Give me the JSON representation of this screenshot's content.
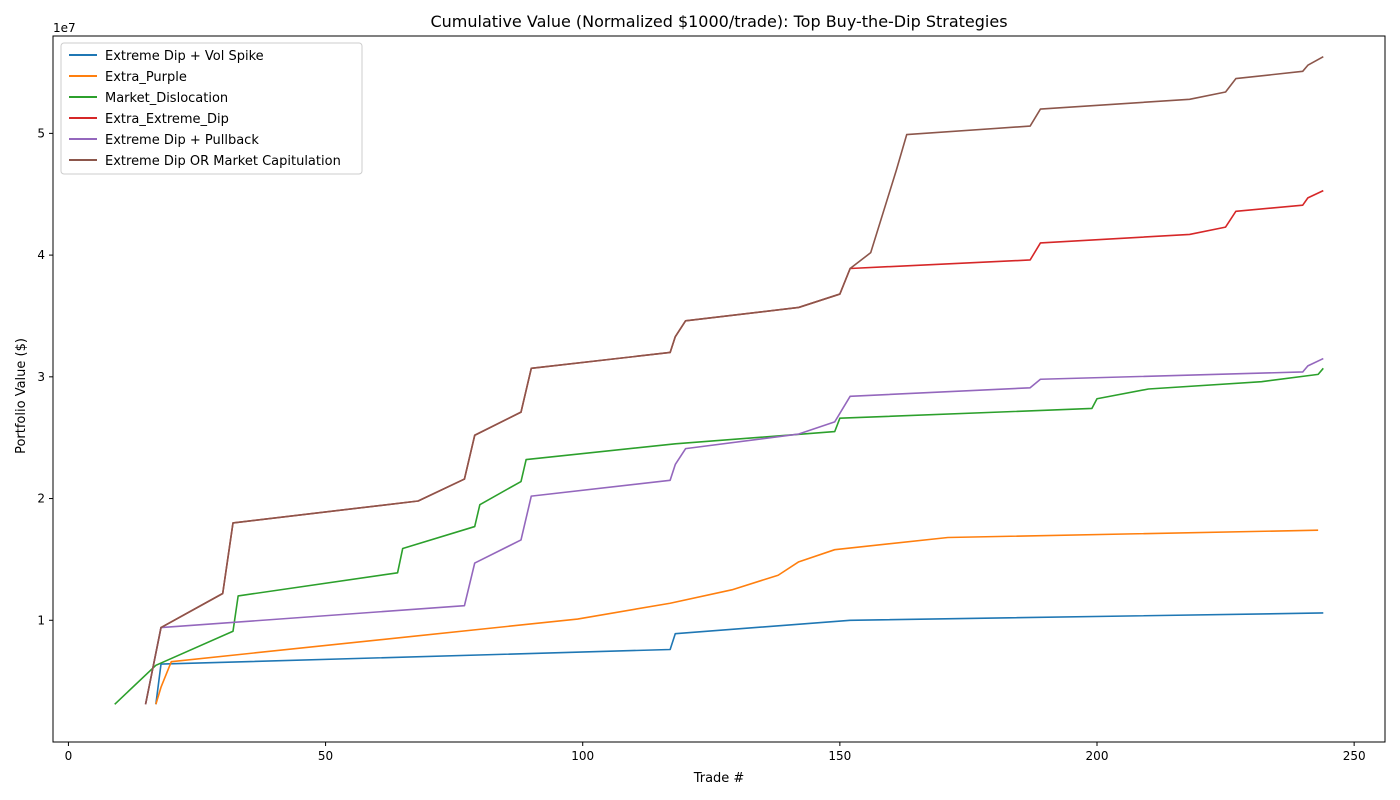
{
  "chart_data": {
    "type": "line",
    "title": "Cumulative Value (Normalized $1000/trade): Top Buy-the-Dip Strategies",
    "xlabel": "Trade #",
    "ylabel": "Portfolio Value ($)",
    "y_scale_label": "1e7",
    "xlim": [
      -3,
      256
    ],
    "ylim": [
      0,
      58000000
    ],
    "x_ticks": [
      0,
      50,
      100,
      150,
      200,
      250
    ],
    "x_tick_labels": [
      "0",
      "50",
      "100",
      "150",
      "200",
      "250"
    ],
    "y_ticks": [
      10000000,
      20000000,
      30000000,
      40000000,
      50000000
    ],
    "y_tick_labels": [
      "1",
      "2",
      "3",
      "4",
      "5"
    ],
    "grid": false,
    "legend_position": "top-left",
    "series": [
      {
        "name": "Extreme Dip + Vol Spike",
        "color": "#1f77b4",
        "points": [
          [
            17,
            3100000
          ],
          [
            18,
            6400000
          ],
          [
            117,
            7600000
          ],
          [
            118,
            8900000
          ],
          [
            152,
            10000000
          ],
          [
            244,
            10600000
          ]
        ]
      },
      {
        "name": "Extra_Purple",
        "color": "#ff7f0e",
        "points": [
          [
            17,
            3100000
          ],
          [
            18,
            4500000
          ],
          [
            20,
            6600000
          ],
          [
            99,
            10100000
          ],
          [
            117,
            11400000
          ],
          [
            129,
            12500000
          ],
          [
            138,
            13700000
          ],
          [
            142,
            14800000
          ],
          [
            149,
            15800000
          ],
          [
            171,
            16800000
          ],
          [
            243,
            17400000
          ]
        ]
      },
      {
        "name": "Market_Dislocation",
        "color": "#2ca02c",
        "points": [
          [
            9,
            3100000
          ],
          [
            17,
            6300000
          ],
          [
            32,
            9100000
          ],
          [
            33,
            12000000
          ],
          [
            64,
            13900000
          ],
          [
            65,
            15900000
          ],
          [
            79,
            17700000
          ],
          [
            80,
            19500000
          ],
          [
            88,
            21400000
          ],
          [
            89,
            23200000
          ],
          [
            118,
            24500000
          ],
          [
            149,
            25500000
          ],
          [
            150,
            26600000
          ],
          [
            199,
            27400000
          ],
          [
            200,
            28200000
          ],
          [
            210,
            29000000
          ],
          [
            232,
            29600000
          ],
          [
            243,
            30200000
          ],
          [
            244,
            30700000
          ]
        ]
      },
      {
        "name": "Extra_Extreme_Dip",
        "color": "#d62728",
        "points": [
          [
            15,
            3100000
          ],
          [
            18,
            9400000
          ],
          [
            30,
            12200000
          ],
          [
            32,
            18000000
          ],
          [
            68,
            19800000
          ],
          [
            77,
            21600000
          ],
          [
            79,
            25200000
          ],
          [
            88,
            27100000
          ],
          [
            90,
            30700000
          ],
          [
            117,
            32000000
          ],
          [
            118,
            33300000
          ],
          [
            120,
            34600000
          ],
          [
            142,
            35700000
          ],
          [
            150,
            36800000
          ],
          [
            152,
            38900000
          ],
          [
            187,
            39600000
          ],
          [
            189,
            41000000
          ],
          [
            218,
            41700000
          ],
          [
            225,
            42300000
          ],
          [
            227,
            43600000
          ],
          [
            240,
            44100000
          ],
          [
            241,
            44700000
          ],
          [
            244,
            45300000
          ]
        ]
      },
      {
        "name": "Extreme Dip + Pullback",
        "color": "#9467bd",
        "points": [
          [
            15,
            3100000
          ],
          [
            18,
            9400000
          ],
          [
            77,
            11200000
          ],
          [
            79,
            14700000
          ],
          [
            88,
            16600000
          ],
          [
            90,
            20200000
          ],
          [
            117,
            21500000
          ],
          [
            118,
            22800000
          ],
          [
            120,
            24100000
          ],
          [
            142,
            25300000
          ],
          [
            149,
            26300000
          ],
          [
            152,
            28400000
          ],
          [
            187,
            29100000
          ],
          [
            189,
            29800000
          ],
          [
            240,
            30400000
          ],
          [
            241,
            30900000
          ],
          [
            244,
            31500000
          ]
        ]
      },
      {
        "name": "Extreme Dip OR Market Capitulation",
        "color": "#8c564b",
        "points": [
          [
            15,
            3100000
          ],
          [
            18,
            9400000
          ],
          [
            30,
            12200000
          ],
          [
            32,
            18000000
          ],
          [
            68,
            19800000
          ],
          [
            77,
            21600000
          ],
          [
            79,
            25200000
          ],
          [
            88,
            27100000
          ],
          [
            90,
            30700000
          ],
          [
            117,
            32000000
          ],
          [
            118,
            33300000
          ],
          [
            120,
            34600000
          ],
          [
            142,
            35700000
          ],
          [
            150,
            36800000
          ],
          [
            152,
            38900000
          ],
          [
            156,
            40200000
          ],
          [
            161,
            47000000
          ],
          [
            163,
            49900000
          ],
          [
            187,
            50600000
          ],
          [
            189,
            52000000
          ],
          [
            218,
            52800000
          ],
          [
            225,
            53400000
          ],
          [
            227,
            54500000
          ],
          [
            240,
            55100000
          ],
          [
            241,
            55600000
          ],
          [
            244,
            56300000
          ]
        ]
      }
    ]
  }
}
